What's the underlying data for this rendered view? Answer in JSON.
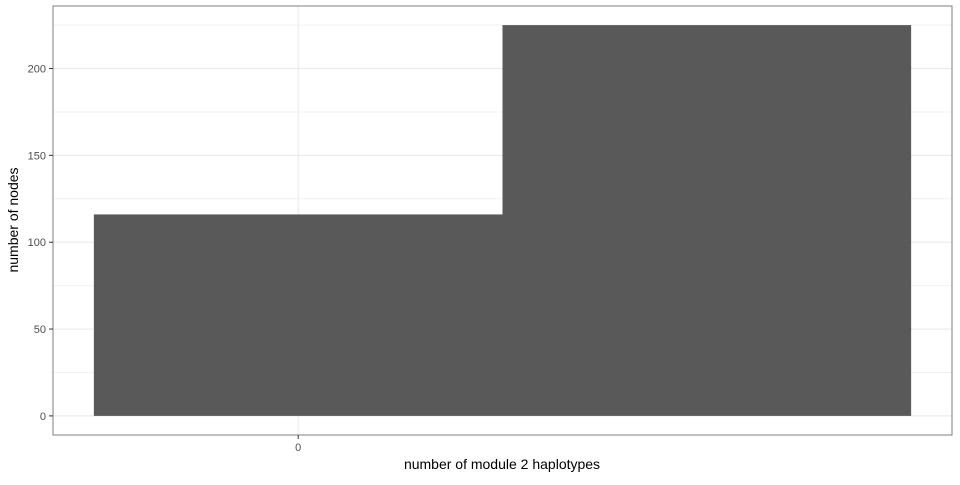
{
  "chart_data": {
    "type": "bar",
    "title": "",
    "xlabel": "number of module 2 haplotypes",
    "ylabel": "number of nodes",
    "x_ticks": [
      "0"
    ],
    "y_ticks": [
      0,
      50,
      100,
      150,
      200
    ],
    "ylim": [
      -11,
      236
    ],
    "grid": true,
    "legend": "none",
    "bar_color": "#595959",
    "bins": [
      {
        "x_start": -0.5,
        "x_end": 0.5,
        "value": 116
      },
      {
        "x_start": 0.5,
        "x_end": 1.5,
        "value": 225
      }
    ],
    "xlim": [
      -0.6,
      1.6
    ]
  }
}
